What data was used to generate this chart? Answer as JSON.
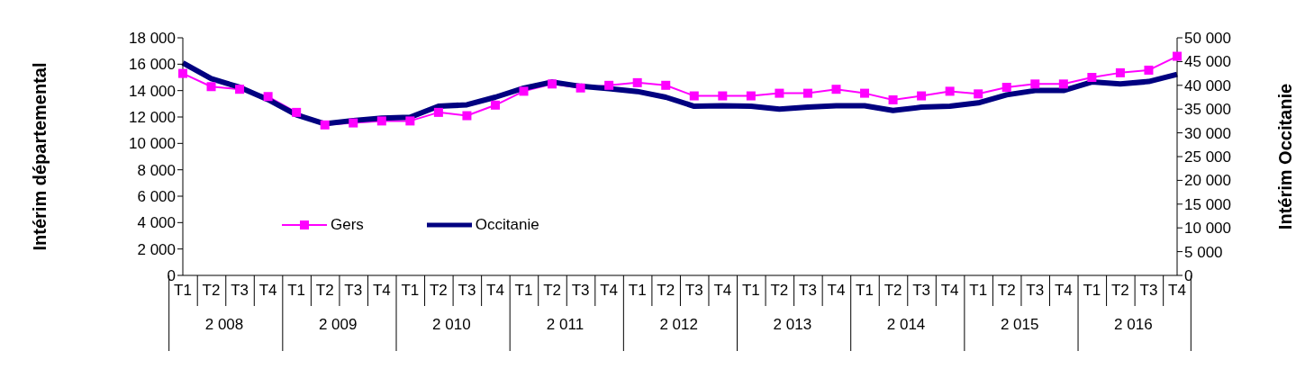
{
  "chart_data": {
    "type": "line",
    "ylabel": "Intérim départemental",
    "y2label": "Intérim Occitanie",
    "categories": [
      "T1",
      "T2",
      "T3",
      "T4",
      "T1",
      "T2",
      "T3",
      "T4",
      "T1",
      "T2",
      "T3",
      "T4",
      "T1",
      "T2",
      "T3",
      "T4",
      "T1",
      "T2",
      "T3",
      "T4",
      "T1",
      "T2",
      "T3",
      "T4",
      "T1",
      "T2",
      "T3",
      "T4",
      "T1",
      "T2",
      "T3",
      "T4",
      "T1",
      "T2",
      "T3",
      "T4"
    ],
    "annotations": [
      "2 008",
      "2 009",
      "2 010",
      "2 011",
      "2 012",
      "2 013",
      "2 014",
      "2 015",
      "2 016"
    ],
    "series": [
      {
        "name": "Gers",
        "color": "#ff00ff",
        "marker": "square",
        "values": [
          15300,
          14300,
          14100,
          13550,
          12350,
          11400,
          11550,
          11700,
          11700,
          12350,
          12100,
          12900,
          13950,
          14500,
          14200,
          14400,
          14600,
          14400,
          13600,
          13600,
          13600,
          13800,
          13800,
          14100,
          13800,
          13300,
          13600,
          13950,
          13750,
          14250,
          14500,
          14500,
          15000,
          15350,
          15550,
          16600
        ]
      },
      {
        "name": "Occitanie",
        "color": "#000080",
        "marker": "none",
        "axis": "y2",
        "values": [
          44700,
          41400,
          39600,
          37000,
          33800,
          31900,
          32600,
          33100,
          33300,
          35600,
          35900,
          37500,
          39400,
          40700,
          39800,
          39300,
          38700,
          37500,
          35600,
          35700,
          35600,
          35000,
          35400,
          35700,
          35700,
          34700,
          35400,
          35600,
          36300,
          38000,
          38900,
          38900,
          40700,
          40300,
          40800,
          42300
        ]
      }
    ],
    "ylim": [
      0,
      18000
    ],
    "yticks": [
      0,
      {
        "value": 2000,
        "label": "2 000"
      },
      {
        "value": 4000,
        "label": "4 000"
      },
      {
        "value": 6000,
        "label": "6 000"
      },
      {
        "value": 8000,
        "label": "8 000"
      },
      {
        "value": 10000,
        "label": "10 000"
      },
      {
        "value": 12000,
        "label": "12 000"
      },
      {
        "value": 14000,
        "label": "14 000"
      },
      {
        "value": 16000,
        "label": "16 000"
      },
      {
        "value": 18000,
        "label": "18 000"
      }
    ],
    "y2lim": [
      0,
      50000
    ],
    "y2ticks": [
      0,
      {
        "value": 5000,
        "label": "5 000"
      },
      {
        "value": 10000,
        "label": "10 000"
      },
      {
        "value": 15000,
        "label": "15 000"
      },
      {
        "value": 20000,
        "label": "20 000"
      },
      {
        "value": 25000,
        "label": "25 000"
      },
      {
        "value": 30000,
        "label": "30 000"
      },
      {
        "value": 35000,
        "label": "35 000"
      },
      {
        "value": 40000,
        "label": "40 000"
      },
      {
        "value": 45000,
        "label": "45 000"
      },
      {
        "value": 50000,
        "label": "50 000"
      }
    ],
    "legend": "left",
    "grid": false
  }
}
